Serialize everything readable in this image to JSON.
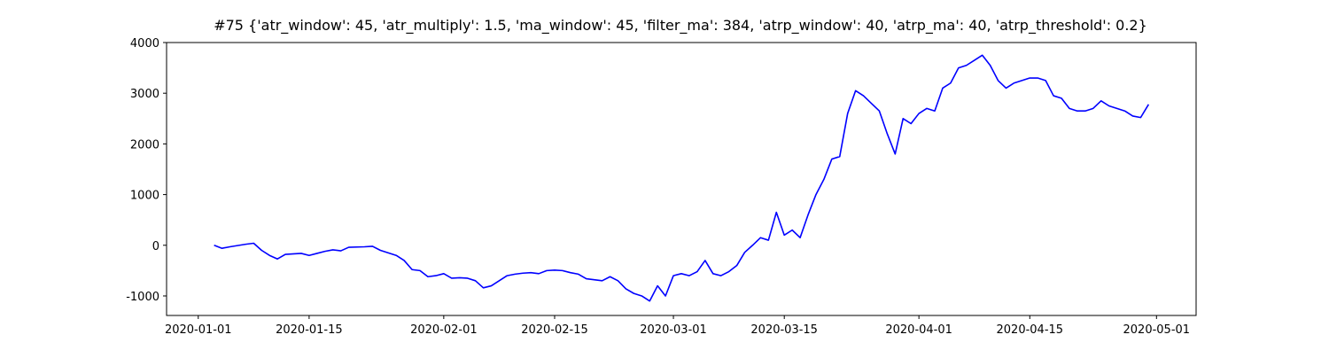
{
  "chart_data": {
    "type": "line",
    "title": "#75 {'atr_window': 45, 'atr_multiply': 1.5, 'ma_window': 45, 'filter_ma': 384, 'atrp_window': 40, 'atrp_ma': 40, 'atrp_threshold': 0.2}",
    "x": [
      "2020-01-03",
      "2020-01-04",
      "2020-01-05",
      "2020-01-07",
      "2020-01-08",
      "2020-01-09",
      "2020-01-10",
      "2020-01-11",
      "2020-01-12",
      "2020-01-14",
      "2020-01-15",
      "2020-01-16",
      "2020-01-17",
      "2020-01-18",
      "2020-01-19",
      "2020-01-20",
      "2020-01-22",
      "2020-01-23",
      "2020-01-24",
      "2020-01-25",
      "2020-01-26",
      "2020-01-27",
      "2020-01-28",
      "2020-01-29",
      "2020-01-30",
      "2020-01-31",
      "2020-02-01",
      "2020-02-02",
      "2020-02-03",
      "2020-02-04",
      "2020-02-05",
      "2020-02-06",
      "2020-02-07",
      "2020-02-08",
      "2020-02-09",
      "2020-02-10",
      "2020-02-11",
      "2020-02-12",
      "2020-02-13",
      "2020-02-14",
      "2020-02-15",
      "2020-02-16",
      "2020-02-17",
      "2020-02-18",
      "2020-02-19",
      "2020-02-20",
      "2020-02-21",
      "2020-02-22",
      "2020-02-23",
      "2020-02-24",
      "2020-02-25",
      "2020-02-26",
      "2020-02-27",
      "2020-02-28",
      "2020-02-29",
      "2020-03-01",
      "2020-03-02",
      "2020-03-03",
      "2020-03-04",
      "2020-03-05",
      "2020-03-06",
      "2020-03-07",
      "2020-03-08",
      "2020-03-09",
      "2020-03-10",
      "2020-03-11",
      "2020-03-12",
      "2020-03-13",
      "2020-03-14",
      "2020-03-15",
      "2020-03-16",
      "2020-03-17",
      "2020-03-18",
      "2020-03-19",
      "2020-03-20",
      "2020-03-21",
      "2020-03-22",
      "2020-03-23",
      "2020-03-24",
      "2020-03-25",
      "2020-03-26",
      "2020-03-27",
      "2020-03-28",
      "2020-03-29",
      "2020-03-30",
      "2020-03-31",
      "2020-04-01",
      "2020-04-02",
      "2020-04-03",
      "2020-04-04",
      "2020-04-05",
      "2020-04-06",
      "2020-04-07",
      "2020-04-08",
      "2020-04-09",
      "2020-04-10",
      "2020-04-11",
      "2020-04-12",
      "2020-04-13",
      "2020-04-14",
      "2020-04-15",
      "2020-04-16",
      "2020-04-17",
      "2020-04-18",
      "2020-04-19",
      "2020-04-20",
      "2020-04-21",
      "2020-04-22",
      "2020-04-23",
      "2020-04-24",
      "2020-04-25",
      "2020-04-26",
      "2020-04-27",
      "2020-04-28",
      "2020-04-29",
      "2020-04-30"
    ],
    "series": [
      {
        "color": "#0000ff",
        "values": [
          0,
          -60,
          -30,
          20,
          40,
          -100,
          -200,
          -270,
          -180,
          -160,
          -200,
          -160,
          -120,
          -90,
          -110,
          -40,
          -30,
          -20,
          -100,
          -150,
          -200,
          -300,
          -480,
          -500,
          -620,
          -600,
          -560,
          -650,
          -640,
          -650,
          -700,
          -840,
          -800,
          -700,
          -600,
          -570,
          -550,
          -540,
          -560,
          -500,
          -490,
          -500,
          -540,
          -570,
          -660,
          -680,
          -700,
          -620,
          -700,
          -860,
          -950,
          -1000,
          -1100,
          -800,
          -1000,
          -600,
          -560,
          -600,
          -520,
          -300,
          -560,
          -600,
          -520,
          -400,
          -140,
          0,
          150,
          100,
          650,
          200,
          300,
          150,
          600,
          1000,
          1300,
          1700,
          1750,
          2600,
          3050,
          2950,
          2800,
          2650,
          2200,
          1800,
          2500,
          2400,
          2600,
          2700,
          2650,
          3100,
          3200,
          3500,
          3550,
          3650,
          3750,
          3550,
          3250,
          3100,
          3200,
          3250,
          3300,
          3300,
          3250,
          2950,
          2900,
          2700,
          2650,
          2650,
          2700,
          2850,
          2750,
          2700,
          2650,
          2550,
          2520,
          2780
        ]
      }
    ],
    "xlim": [
      "2019-12-28",
      "2020-05-06"
    ],
    "xticks": [
      "2020-01-01",
      "2020-01-15",
      "2020-02-01",
      "2020-02-15",
      "2020-03-01",
      "2020-03-15",
      "2020-04-01",
      "2020-04-15",
      "2020-05-01"
    ],
    "ylim": [
      -1385,
      4000
    ],
    "yticks": [
      -1000,
      0,
      1000,
      2000,
      3000,
      4000
    ],
    "grid": false
  }
}
